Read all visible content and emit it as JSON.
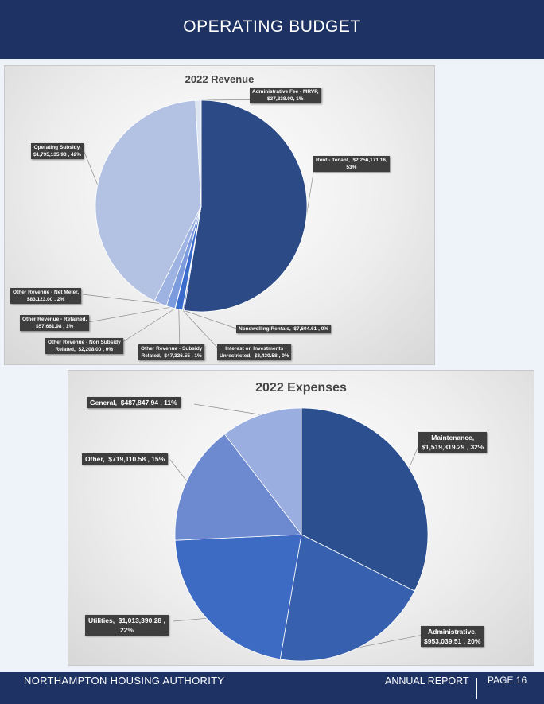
{
  "header": {
    "title": "OPERATING BUDGET"
  },
  "footer": {
    "organization": "NORTHAMPTON HOUSING AUTHORITY",
    "report": "ANNUAL REPORT",
    "page": "PAGE 16"
  },
  "chart_data": [
    {
      "type": "pie",
      "title": "2022 Revenue",
      "slices": [
        {
          "label": "Rent - Tenant",
          "value": 2256171.16,
          "value_text": "$2,256,171.16",
          "percent": "53%",
          "color": "#2c4a86"
        },
        {
          "label": "Nondwelling Rentals",
          "value": 7604.61,
          "value_text": "$7,604.61",
          "percent": "0%",
          "color": "#2f58b0"
        },
        {
          "label": "Interest on Investments Unrestricted",
          "value": 3430.58,
          "value_text": "$3,430.58",
          "percent": "0%",
          "color": "#3563c2"
        },
        {
          "label": "Other Revenue - Subsidy Related",
          "value": 47326.55,
          "value_text": "$47,326.55",
          "percent": "1%",
          "color": "#3a6ccc"
        },
        {
          "label": "Other Revenue - Non Subsidy Related",
          "value": 2208.0,
          "value_text": "$2,208.00",
          "percent": "0%",
          "color": "#6b8cd8"
        },
        {
          "label": "Other Revenue - Retained",
          "value": 57661.98,
          "value_text": "$57,661.98",
          "percent": "1%",
          "color": "#7b9bdd"
        },
        {
          "label": "Other Revenue - Net Meter",
          "value": 83123.0,
          "value_text": "$83,123.00",
          "percent": "2%",
          "color": "#9eb3e2"
        },
        {
          "label": "Operating Subsidy",
          "value": 1795135.93,
          "value_text": "$1,795,135.93",
          "percent": "42%",
          "color": "#b3c2e3"
        },
        {
          "label": "Administrative Fee - MRVP",
          "value": 37238.0,
          "value_text": "$37,238.00",
          "percent": "1%",
          "color": "#dde4f2"
        }
      ]
    },
    {
      "type": "pie",
      "title": "2022 Expenses",
      "slices": [
        {
          "label": "Maintenance",
          "value": 1519319.29,
          "value_text": "$1,519,319.29",
          "percent": "32%",
          "color": "#2c4f8f"
        },
        {
          "label": "Administrative",
          "value": 953039.51,
          "value_text": "$953,039.51",
          "percent": "20%",
          "color": "#3760ae"
        },
        {
          "label": "Utilities",
          "value": 1013390.28,
          "value_text": "$1,013,390.28",
          "percent": "22%",
          "color": "#3d6bc4"
        },
        {
          "label": "Other",
          "value": 719110.58,
          "value_text": "$719,110.58",
          "percent": "15%",
          "color": "#6d8ad1"
        },
        {
          "label": "General",
          "value": 487847.94,
          "value_text": "$487,847.94",
          "percent": "11%",
          "color": "#9aaee0"
        }
      ]
    }
  ]
}
